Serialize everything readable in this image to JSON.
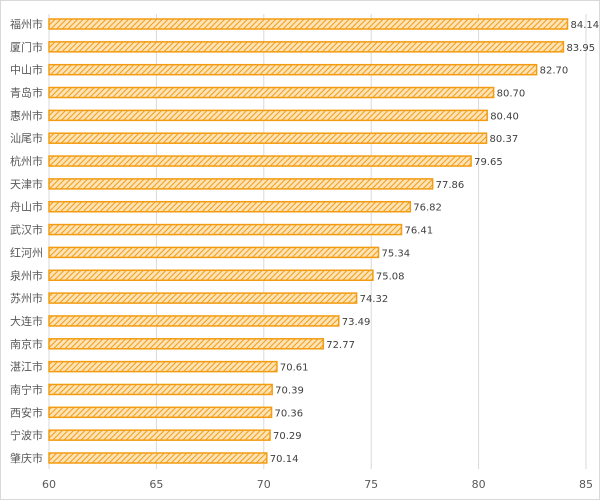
{
  "chart_data": {
    "type": "bar",
    "orientation": "horizontal",
    "categories": [
      "福州市",
      "厦门市",
      "中山市",
      "青岛市",
      "惠州市",
      "汕尾市",
      "杭州市",
      "天津市",
      "舟山市",
      "武汉市",
      "红河州",
      "泉州市",
      "苏州市",
      "大连市",
      "南京市",
      "湛江市",
      "南宁市",
      "西安市",
      "宁波市",
      "肇庆市"
    ],
    "values": [
      84.14,
      83.95,
      82.7,
      80.7,
      80.4,
      80.37,
      79.65,
      77.86,
      76.82,
      76.41,
      75.34,
      75.08,
      74.32,
      73.49,
      72.77,
      70.61,
      70.39,
      70.36,
      70.29,
      70.14
    ],
    "data_labels": [
      "84.14",
      "83.95",
      "82.70",
      "80.70",
      "80.40",
      "80.37",
      "79.65",
      "77.86",
      "76.82",
      "76.41",
      "75.34",
      "75.08",
      "74.32",
      "73.49",
      "72.77",
      "70.61",
      "70.39",
      "70.36",
      "70.29",
      "70.14"
    ],
    "xlim": [
      60,
      85
    ],
    "xticks": [
      "60",
      "65",
      "70",
      "75",
      "80",
      "85"
    ],
    "title": "",
    "xlabel": "",
    "ylabel": "",
    "grid": "vertical",
    "legend": "none",
    "colors": {
      "bar_border": "#F39C12",
      "bar_hatch": "#F39C12",
      "grid": "#d9d9d9",
      "text": "#595959"
    },
    "fill_pattern": "diagonal-hatch"
  }
}
